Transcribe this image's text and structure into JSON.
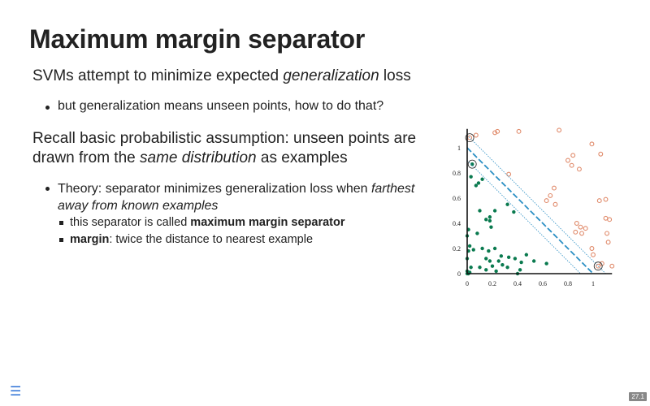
{
  "slide": {
    "title": "Maximum margin separator",
    "line1": {
      "prefix": "SVMs attempt to minimize expected ",
      "emph": "generalization",
      "suffix": " loss"
    },
    "bullet1": "but generalization means unseen points, how to do that?",
    "para2": {
      "prefix": "Recall basic probabilistic assumption: unseen points are drawn from the ",
      "emph": "same distribution",
      "suffix": " as examples"
    },
    "bullet2": {
      "prefix": "Theory: separator minimizes generalization loss when ",
      "emph": "farthest away from known examples"
    },
    "sub1": {
      "prefix": "this separator is called ",
      "bold": "maximum margin separator"
    },
    "sub2": {
      "bold": "margin",
      "suffix": ": twice the distance to nearest example"
    },
    "menu_icon": "menu-icon",
    "page_number": "27.1"
  },
  "chart_data": {
    "type": "scatter",
    "xlim": [
      0,
      1.15
    ],
    "ylim": [
      0,
      1.15
    ],
    "xticks": [
      "0",
      "0.2",
      "0.4",
      "0.6",
      "0.8",
      "1"
    ],
    "yticks": [
      "0",
      "0.2",
      "0.4",
      "0.6",
      "0.8",
      "1"
    ],
    "grid": false,
    "colors": {
      "negative": "#0a7a4f",
      "positive": "#e08a6a",
      "separator": "#2b8fc4"
    },
    "separator_line": {
      "x_intercept": 1.0,
      "slope": -1
    },
    "margin_offset": 0.1,
    "support_vectors": [
      [
        0.02,
        1.08
      ],
      [
        0.04,
        0.87
      ],
      [
        1.04,
        0.06
      ]
    ],
    "negative_points": [
      [
        0.0,
        0.0
      ],
      [
        0.0,
        0.02
      ],
      [
        0.01,
        0.0
      ],
      [
        0.02,
        0.01
      ],
      [
        0.0,
        0.12
      ],
      [
        0.01,
        0.18
      ],
      [
        0.02,
        0.22
      ],
      [
        0.0,
        0.3
      ],
      [
        0.01,
        0.35
      ],
      [
        0.03,
        0.05
      ],
      [
        0.05,
        0.19
      ],
      [
        0.03,
        0.77
      ],
      [
        0.04,
        0.87
      ],
      [
        0.07,
        0.7
      ],
      [
        0.09,
        0.72
      ],
      [
        0.12,
        0.75
      ],
      [
        0.1,
        0.5
      ],
      [
        0.15,
        0.43
      ],
      [
        0.18,
        0.45
      ],
      [
        0.18,
        0.42
      ],
      [
        0.22,
        0.5
      ],
      [
        0.19,
        0.37
      ],
      [
        0.08,
        0.32
      ],
      [
        0.12,
        0.2
      ],
      [
        0.17,
        0.18
      ],
      [
        0.22,
        0.2
      ],
      [
        0.15,
        0.12
      ],
      [
        0.18,
        0.1
      ],
      [
        0.1,
        0.05
      ],
      [
        0.15,
        0.03
      ],
      [
        0.2,
        0.06
      ],
      [
        0.23,
        0.02
      ],
      [
        0.25,
        0.1
      ],
      [
        0.28,
        0.07
      ],
      [
        0.32,
        0.05
      ],
      [
        0.27,
        0.14
      ],
      [
        0.33,
        0.13
      ],
      [
        0.38,
        0.12
      ],
      [
        0.43,
        0.09
      ],
      [
        0.47,
        0.15
      ],
      [
        0.53,
        0.1
      ],
      [
        0.42,
        0.03
      ],
      [
        0.32,
        0.55
      ],
      [
        0.37,
        0.49
      ],
      [
        0.63,
        0.08
      ],
      [
        0.4,
        0.0
      ]
    ],
    "positive_points": [
      [
        0.02,
        1.08
      ],
      [
        0.07,
        1.1
      ],
      [
        0.22,
        1.12
      ],
      [
        0.24,
        1.13
      ],
      [
        0.41,
        1.13
      ],
      [
        0.73,
        1.14
      ],
      [
        0.33,
        0.79
      ],
      [
        0.63,
        0.58
      ],
      [
        0.66,
        0.62
      ],
      [
        0.7,
        0.55
      ],
      [
        0.69,
        0.68
      ],
      [
        0.8,
        0.9
      ],
      [
        0.84,
        0.94
      ],
      [
        0.83,
        0.86
      ],
      [
        0.89,
        0.83
      ],
      [
        0.99,
        1.03
      ],
      [
        1.06,
        0.95
      ],
      [
        1.1,
        0.59
      ],
      [
        1.05,
        0.58
      ],
      [
        1.1,
        0.44
      ],
      [
        1.13,
        0.43
      ],
      [
        1.11,
        0.32
      ],
      [
        1.12,
        0.25
      ],
      [
        0.87,
        0.4
      ],
      [
        0.9,
        0.37
      ],
      [
        0.94,
        0.36
      ],
      [
        0.91,
        0.32
      ],
      [
        0.86,
        0.33
      ],
      [
        0.99,
        0.2
      ],
      [
        1.0,
        0.15
      ],
      [
        1.04,
        0.06
      ],
      [
        1.07,
        0.08
      ],
      [
        1.15,
        0.06
      ]
    ]
  }
}
